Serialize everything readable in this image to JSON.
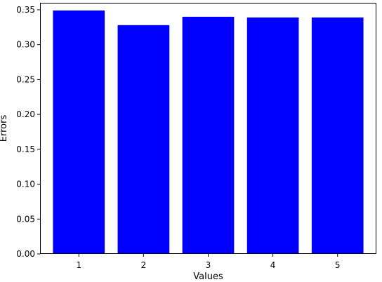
{
  "chart_data": {
    "type": "bar",
    "categories": [
      "1",
      "2",
      "3",
      "4",
      "5"
    ],
    "values": [
      0.349,
      0.328,
      0.34,
      0.339,
      0.339
    ],
    "xlabel": "Values",
    "ylabel": "Errors",
    "ylim": [
      0,
      0.36
    ],
    "yticks": [
      "0.00",
      "0.05",
      "0.10",
      "0.15",
      "0.20",
      "0.25",
      "0.30",
      "0.35"
    ],
    "grid": false,
    "bar_color": "#0000ff",
    "axis_color": "#000000",
    "background": "#ffffff"
  }
}
